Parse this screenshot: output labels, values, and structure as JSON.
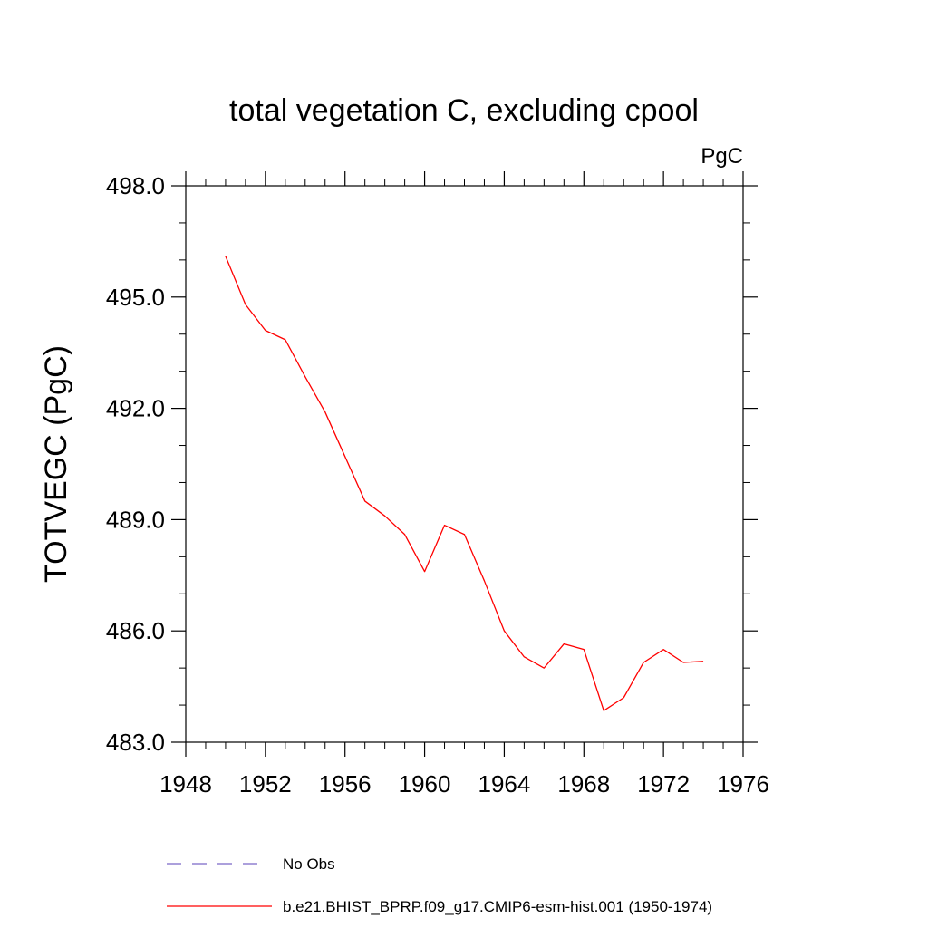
{
  "chart_data": {
    "type": "line",
    "title": "total vegetation C, excluding cpool",
    "units_label": "PgC",
    "ylabel": "TOTVEGC  (PgC)",
    "xlabel": "",
    "xlim": [
      1948,
      1976
    ],
    "ylim": [
      483.0,
      498.0
    ],
    "x_ticks": [
      1948,
      1952,
      1956,
      1960,
      1964,
      1968,
      1972,
      1976
    ],
    "x_tick_labels": [
      "1948",
      "1952",
      "1956",
      "1960",
      "1964",
      "1968",
      "1972",
      "1976"
    ],
    "y_ticks": [
      483.0,
      486.0,
      489.0,
      492.0,
      495.0,
      498.0
    ],
    "y_tick_labels": [
      "483.0",
      "486.0",
      "489.0",
      "492.0",
      "495.0",
      "498.0"
    ],
    "x_minor_step": 1,
    "y_minor_step": 1,
    "series": [
      {
        "name": "b.e21.BHIST_BPRP.f09_g17.CMIP6-esm-hist.001 (1950-1974)",
        "color": "#ff0000",
        "dash": "solid",
        "x": [
          1950,
          1951,
          1952,
          1953,
          1954,
          1955,
          1956,
          1957,
          1958,
          1959,
          1960,
          1961,
          1962,
          1963,
          1964,
          1965,
          1966,
          1967,
          1968,
          1969,
          1970,
          1971,
          1972,
          1973,
          1974
        ],
        "values": [
          496.1,
          494.8,
          494.1,
          493.85,
          492.85,
          491.9,
          490.7,
          489.5,
          489.1,
          488.6,
          487.6,
          488.85,
          488.6,
          487.35,
          486.0,
          485.3,
          485.0,
          485.65,
          485.5,
          483.85,
          484.2,
          485.15,
          485.5,
          485.15,
          485.18
        ]
      }
    ],
    "legend": [
      {
        "label": "No Obs",
        "color": "#7b68c8",
        "dash": "dashed"
      },
      {
        "label": "b.e21.BHIST_BPRP.f09_g17.CMIP6-esm-hist.001 (1950-1974)",
        "color": "#ff0000",
        "dash": "solid"
      }
    ]
  }
}
